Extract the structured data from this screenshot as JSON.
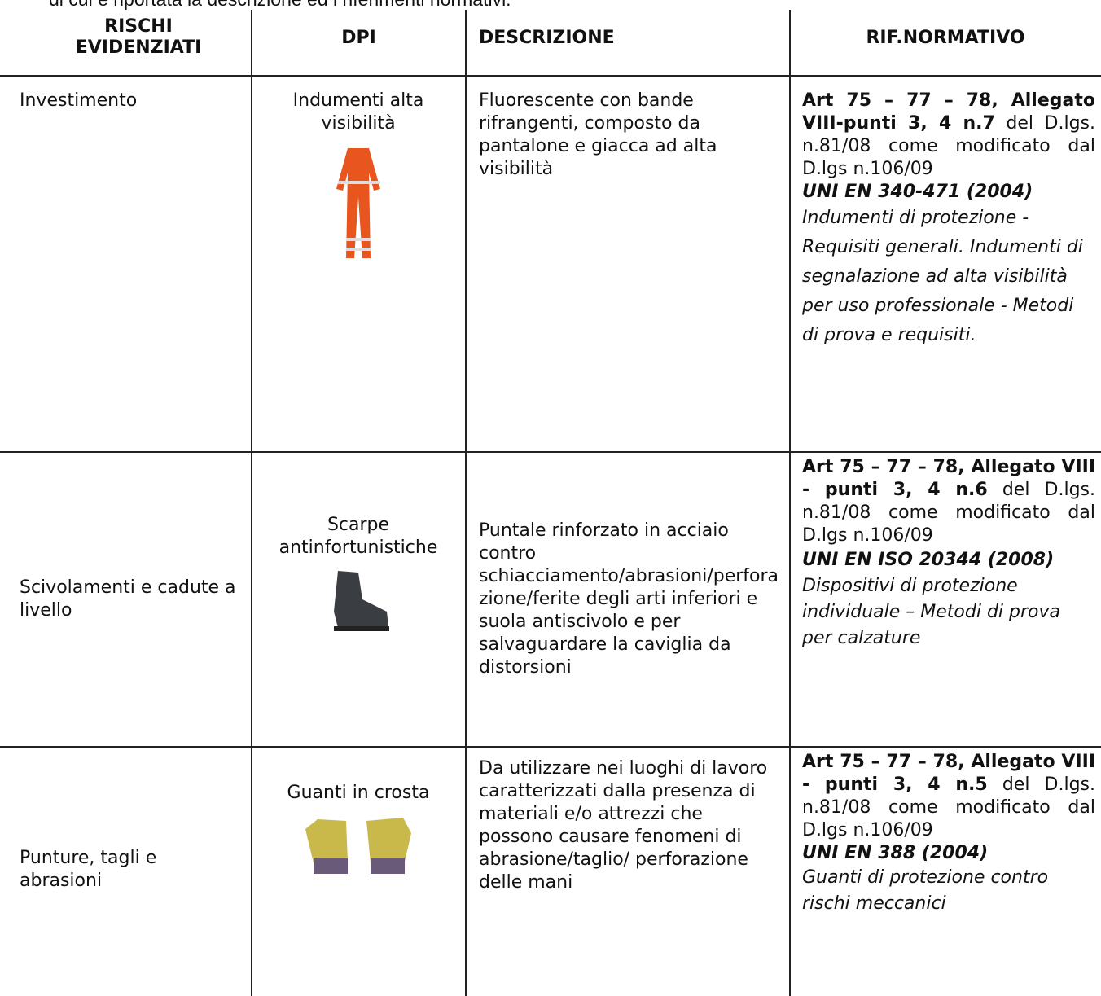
{
  "intro": "di cui è riportata la descrizione ed i riferimenti normativi.",
  "table": {
    "headers": [
      "RISCHI EVIDENZIATI",
      "DPI",
      "DESCRIZIONE",
      "RIF.NORMATIVO"
    ],
    "rows": [
      {
        "risk": "Investimento",
        "dpi": "Indumenti alta visibilità",
        "description": "Fluorescente con bande rifrangenti, composto da pantalone e giacca ad alta visibilità",
        "rif": {
          "articles": "Art 75 – 77 – 78, Allegato VIII-punti 3, 4 n.7",
          "decree": "del D.lgs. n.81/08 come modificato dal D.lgs n.106/09",
          "standard": "UNI EN 340-471 (2004)",
          "standard_desc": "Indumenti di protezione - Requisiti generali. Indumenti di segnalazione ad alta visibilità per uso professionale - Metodi di prova e requisiti."
        }
      },
      {
        "risk": "Scivolamenti e cadute a livello",
        "dpi": "Scarpe antinfortunistiche",
        "description": "Puntale rinforzato in acciaio contro schiacciamento/abrasioni/perforazione/ferite degli arti inferiori e suola antiscivolo e per salvaguardare la caviglia da distorsioni",
        "rif": {
          "articles": "Art 75 – 77 – 78, Allegato VIII - punti 3, 4 n.6",
          "decree": "del D.lgs. n.81/08 come modificato dal D.lgs n.106/09",
          "standard": "UNI EN ISO 20344 (2008)",
          "standard_desc": "Dispositivi di protezione individuale – Metodi di prova per calzature"
        }
      },
      {
        "risk": "Punture, tagli e abrasioni",
        "dpi": "Guanti in crosta",
        "description": "Da utilizzare nei luoghi di lavoro caratterizzati dalla presenza di materiali e/o attrezzi che possono causare fenomeni di abrasione/taglio/ perforazione delle mani",
        "rif": {
          "articles": "Art 75 – 77 – 78, Allegato VIII - punti 3, 4 n.5",
          "decree": "del D.lgs. n.81/08 come modificato dal D.lgs n.106/09",
          "standard": "UNI EN 388 (2004)",
          "standard_desc": "Guanti di protezione contro rischi meccanici"
        }
      }
    ]
  }
}
